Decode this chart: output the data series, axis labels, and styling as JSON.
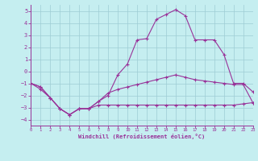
{
  "xlabel": "Windchill (Refroidissement éolien,°C)",
  "background_color": "#c5eef0",
  "grid_color": "#9eccd4",
  "line_color": "#993399",
  "xlim": [
    0,
    23
  ],
  "ylim": [
    -4.5,
    5.5
  ],
  "yticks": [
    -4,
    -3,
    -2,
    -1,
    0,
    1,
    2,
    3,
    4,
    5
  ],
  "xticks": [
    0,
    1,
    2,
    3,
    4,
    5,
    6,
    7,
    8,
    9,
    10,
    11,
    12,
    13,
    14,
    15,
    16,
    17,
    18,
    19,
    20,
    21,
    22,
    23
  ],
  "line1_x": [
    0,
    1,
    2,
    3,
    4,
    5,
    6,
    7,
    8,
    9,
    10,
    11,
    12,
    13,
    14,
    15,
    16,
    17,
    18,
    19,
    20,
    21,
    22,
    23
  ],
  "line1_y": [
    -1.0,
    -1.5,
    -2.2,
    -3.1,
    -3.6,
    -3.1,
    -3.1,
    -2.5,
    -2.0,
    -0.3,
    0.6,
    2.6,
    2.7,
    4.3,
    4.7,
    5.1,
    4.6,
    2.6,
    2.6,
    2.6,
    1.4,
    -1.0,
    -1.0,
    -1.7
  ],
  "line2_x": [
    0,
    1,
    2,
    3,
    4,
    5,
    6,
    7,
    8,
    9,
    10,
    11,
    12,
    13,
    14,
    15,
    16,
    17,
    18,
    19,
    20,
    21,
    22,
    23
  ],
  "line2_y": [
    -1.0,
    -1.3,
    -2.2,
    -3.1,
    -3.6,
    -3.1,
    -3.1,
    -2.5,
    -1.8,
    -1.5,
    -1.3,
    -1.1,
    -0.9,
    -0.7,
    -0.5,
    -0.3,
    -0.5,
    -0.7,
    -0.8,
    -0.9,
    -1.0,
    -1.1,
    -1.1,
    -2.6
  ],
  "line3_x": [
    0,
    1,
    2,
    3,
    4,
    5,
    6,
    7,
    8,
    9,
    10,
    11,
    12,
    13,
    14,
    15,
    16,
    17,
    18,
    19,
    20,
    21,
    22,
    23
  ],
  "line3_y": [
    -1.0,
    -1.3,
    -2.2,
    -3.1,
    -3.6,
    -3.1,
    -3.1,
    -2.8,
    -2.8,
    -2.8,
    -2.8,
    -2.8,
    -2.8,
    -2.8,
    -2.8,
    -2.8,
    -2.8,
    -2.8,
    -2.8,
    -2.8,
    -2.8,
    -2.8,
    -2.7,
    -2.6
  ]
}
